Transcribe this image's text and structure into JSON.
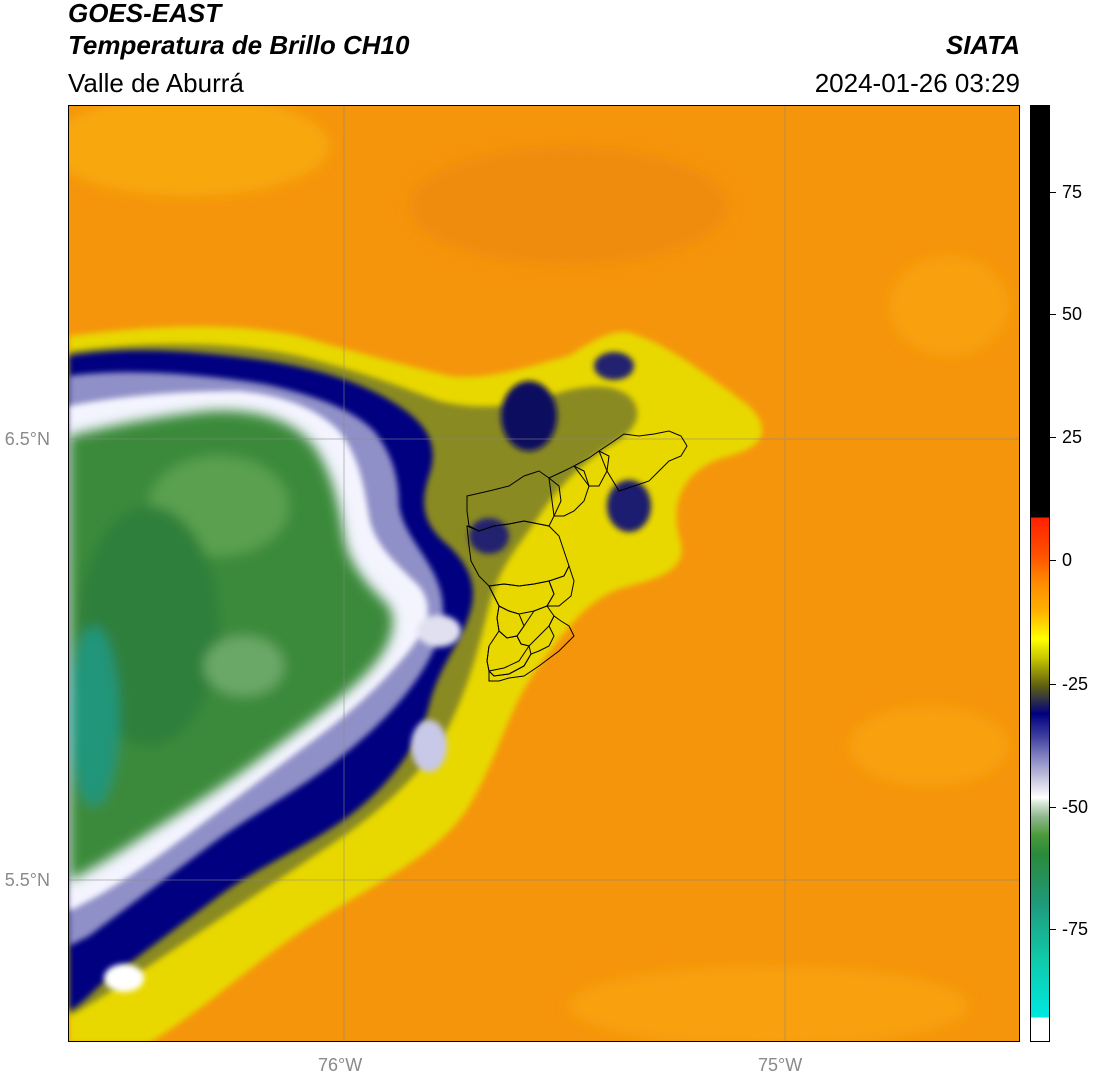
{
  "header": {
    "satellite": "GOES-EAST",
    "product": "Temperatura de Brillo CH10",
    "region": "Valle de Aburrá",
    "organization": "SIATA",
    "datetime": "2024-01-26 03:29"
  },
  "map": {
    "lat_ticks": [
      "6.5°N",
      "5.5°N"
    ],
    "lon_ticks": [
      "76°W",
      "75°W"
    ],
    "gridlines": true,
    "background_color": "#f5950b"
  },
  "colorbar": {
    "ticks": [
      "75",
      "50",
      "25",
      "0",
      "-25",
      "-50",
      "-75"
    ],
    "colors": {
      "warm": "#ff8c00",
      "hot": "#ff2000",
      "black_top": "#000000",
      "yellow": "#ffff00",
      "navy": "#000080",
      "white": "#ffffff",
      "green": "#2a8a3a",
      "cyan": "#00e8e0"
    }
  }
}
